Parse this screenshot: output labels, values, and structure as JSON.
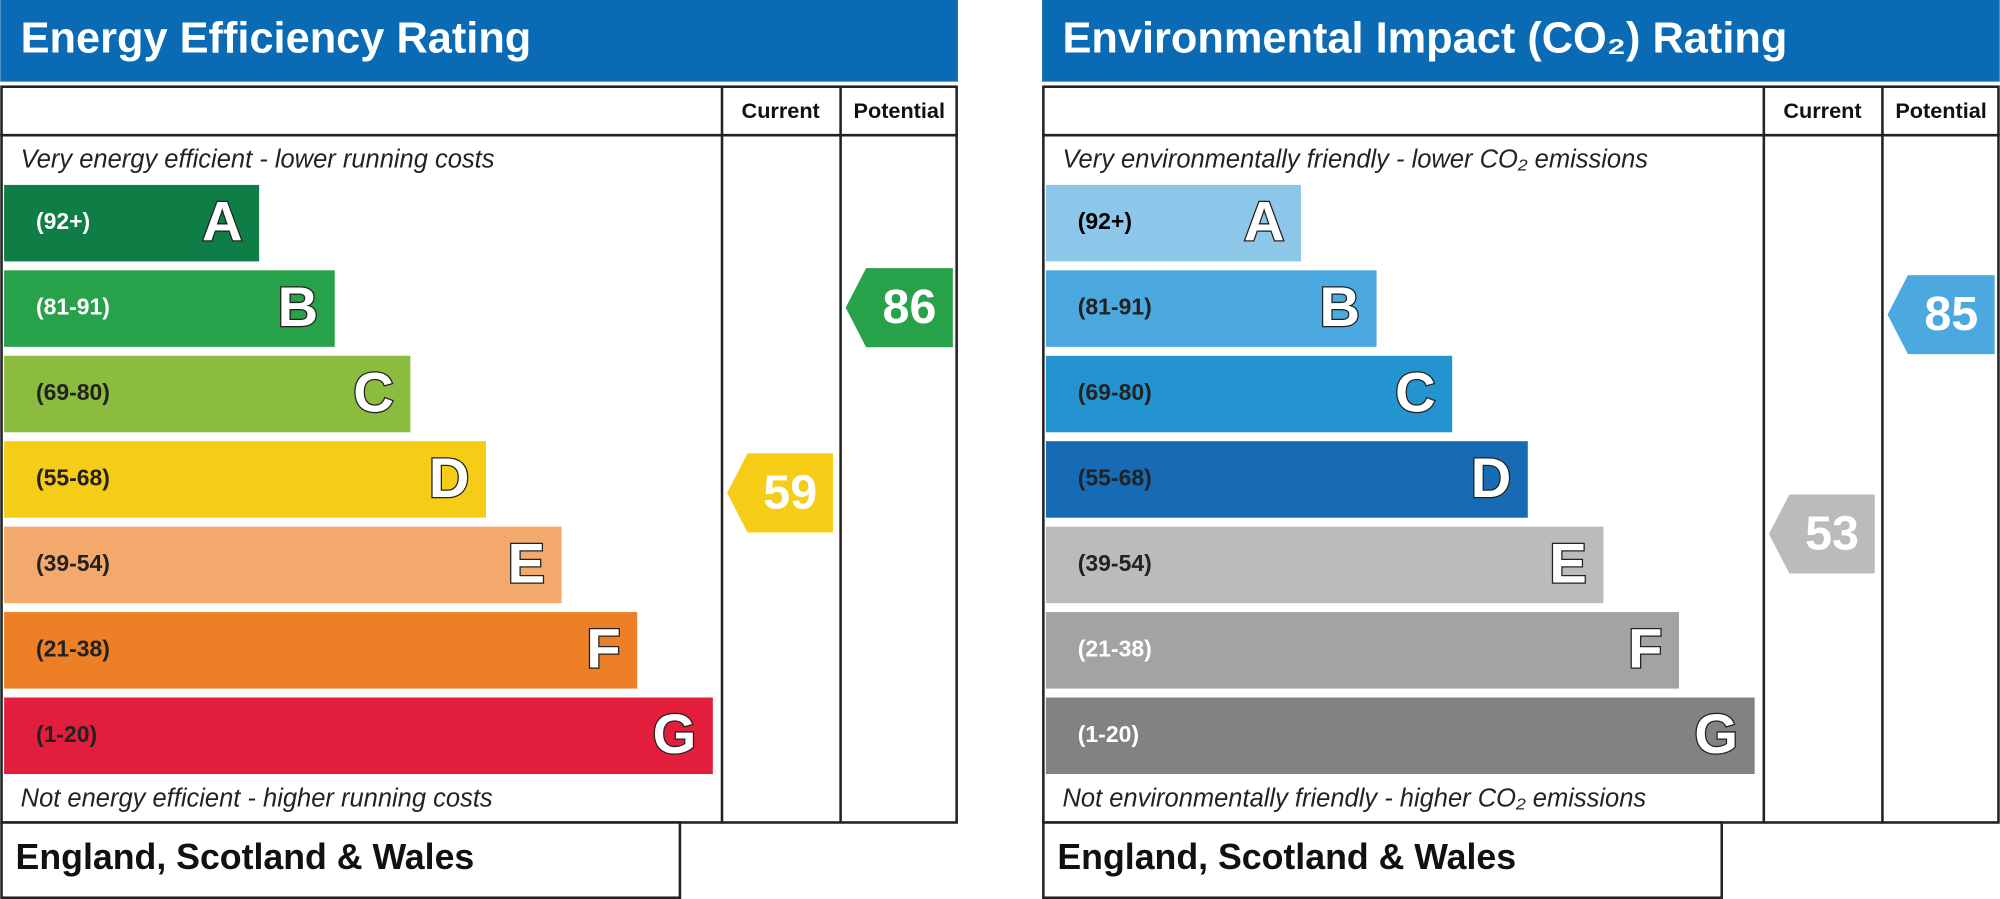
{
  "panels": [
    {
      "title": "Energy Efficiency Rating",
      "columns": [
        "Current",
        "Potential"
      ],
      "top_note": "Very energy efficient - lower running costs",
      "bottom_note": "Not energy efficient - higher running costs",
      "bands": [
        {
          "range": "(92+)",
          "letter": "A"
        },
        {
          "range": "(81-91)",
          "letter": "B"
        },
        {
          "range": "(69-80)",
          "letter": "C"
        },
        {
          "range": "(55-68)",
          "letter": "D"
        },
        {
          "range": "(39-54)",
          "letter": "E"
        },
        {
          "range": "(21-38)",
          "letter": "F"
        },
        {
          "range": "(1-20)",
          "letter": "G"
        }
      ],
      "current": 59,
      "potential": 86,
      "footer": "England, Scotland & Wales"
    },
    {
      "title": "Environmental Impact (CO₂) Rating",
      "columns": [
        "Current",
        "Potential"
      ],
      "top_note": "Very environmentally friendly - lower CO₂ emissions",
      "bottom_note": "Not environmentally friendly - higher CO₂ emissions",
      "bands": [
        {
          "range": "(92+)",
          "letter": "A"
        },
        {
          "range": "(81-91)",
          "letter": "B"
        },
        {
          "range": "(69-80)",
          "letter": "C"
        },
        {
          "range": "(55-68)",
          "letter": "D"
        },
        {
          "range": "(39-54)",
          "letter": "E"
        },
        {
          "range": "(21-38)",
          "letter": "F"
        },
        {
          "range": "(1-20)",
          "letter": "G"
        }
      ],
      "current": 53,
      "potential": 85,
      "footer": "England, Scotland & Wales"
    }
  ]
}
